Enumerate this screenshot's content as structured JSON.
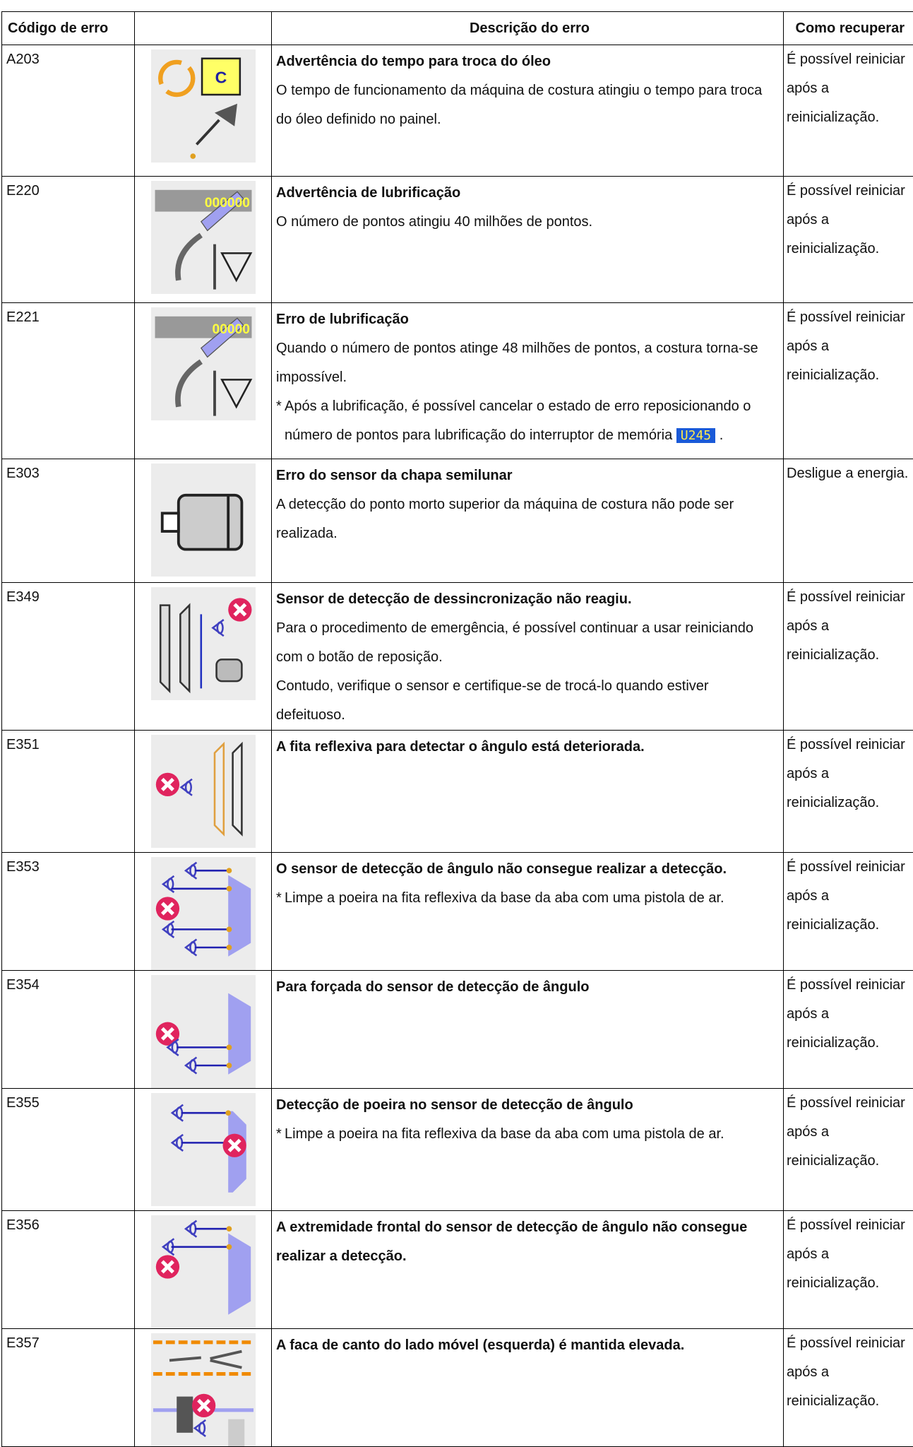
{
  "table": {
    "headers": {
      "code": "Código de erro",
      "description": "Descrição do erro",
      "recovery": "Como recuperar"
    },
    "rows": [
      {
        "code": "A203",
        "icon_text": "C",
        "title": "Advertência do tempo para troca do óleo",
        "paragraphs": [
          "O tempo de funcionamento da máquina de costura atingiu o tempo para troca do óleo definido no painel."
        ],
        "notes": [],
        "recovery": "É possível reiniciar após a reinicialização."
      },
      {
        "code": "E220",
        "icon_text": "000000",
        "title": "Advertência de lubrificação",
        "paragraphs": [
          "O número de pontos atingiu 40 milhões de pontos."
        ],
        "notes": [],
        "recovery": "É possível reiniciar após a reinicialização."
      },
      {
        "code": "E221",
        "icon_text": "00000",
        "title": "Erro de lubrificação",
        "paragraphs": [
          "Quando o número de pontos atinge 48 milhões de pontos, a costura torna-se impossível."
        ],
        "notes": [
          {
            "mark": "*",
            "text": "Após a lubrificação, é possível cancelar o estado de erro reposicionando o número de pontos para lubrificação do interruptor de memória",
            "badge": "U245",
            "end": "."
          }
        ],
        "recovery": "É possível reiniciar após a reinicialização."
      },
      {
        "code": "E303",
        "title": "Erro do sensor da chapa semilunar",
        "paragraphs": [
          "A detecção do ponto morto superior da máquina de costura não pode ser realizada."
        ],
        "notes": [],
        "recovery": "Desligue a energia."
      },
      {
        "code": "E349",
        "title": "Sensor de detecção de dessincronização não reagiu.",
        "paragraphs": [
          "Para o procedimento de emergência, é possível continuar a usar reiniciando com o botão de reposição.",
          "Contudo, verifique o sensor e certifique-se de trocá-lo quando estiver defeituoso."
        ],
        "notes": [],
        "recovery": "É possível reiniciar após a reinicialização."
      },
      {
        "code": "E351",
        "title": "A fita reflexiva para detectar o ângulo está deteriorada.",
        "paragraphs": [],
        "notes": [],
        "recovery": "É possível reiniciar após a reinicialização."
      },
      {
        "code": "E353",
        "title": "O sensor de detecção de ângulo não consegue realizar a detecção.",
        "paragraphs": [],
        "notes": [
          {
            "mark": "*",
            "text": "Limpe a poeira na fita reflexiva da base da aba com uma pistola de ar."
          }
        ],
        "recovery": "É possível reiniciar após a reinicialização."
      },
      {
        "code": "E354",
        "title": "Para forçada do sensor de detecção de ângulo",
        "paragraphs": [],
        "notes": [],
        "recovery": "É possível reiniciar após a reinicialização."
      },
      {
        "code": "E355",
        "title": "Detecção de poeira no sensor de detecção de ângulo",
        "paragraphs": [],
        "notes": [
          {
            "mark": "*",
            "text": "Limpe a poeira na fita reflexiva da base da aba com uma pistola de ar."
          }
        ],
        "recovery": "É possível reiniciar após a reinicialização."
      },
      {
        "code": "E356",
        "title": "A extremidade frontal do sensor de detecção de ângulo não consegue realizar a detecção.",
        "paragraphs": [],
        "notes": [],
        "recovery": "É possível reiniciar após a reinicialização."
      },
      {
        "code": "E357",
        "title": "A faca de canto do lado móvel (esquerda) é mantida elevada.",
        "paragraphs": [],
        "notes": [],
        "recovery": "É possível reiniciar após a reinicialização."
      }
    ]
  }
}
